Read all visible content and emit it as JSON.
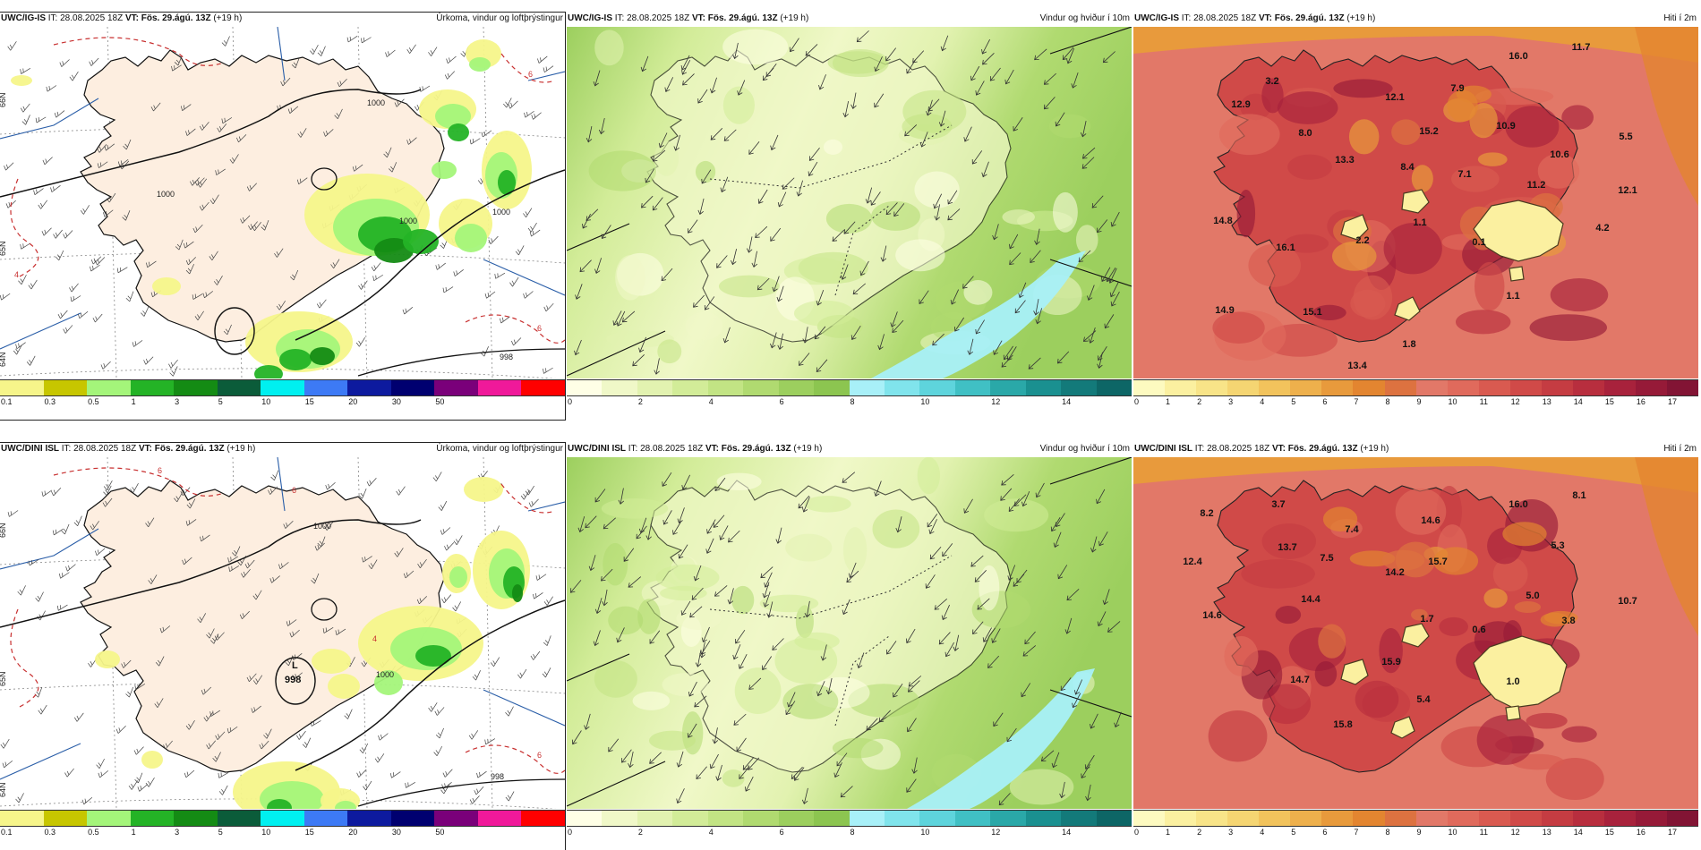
{
  "rows": [
    {
      "id": "top",
      "panels": [
        {
          "type": "precip",
          "model": "UWC/IG-IS",
          "it_label": "IT:",
          "it_value": "28.08.2025 18Z",
          "vt_label": "VT:",
          "vt_value": "Fös. 29.ágú. 13Z",
          "lead": "(+19 h)",
          "field_title": "Úrkoma, vindur og loftþrýstingur",
          "isobar_labels": [
            "1000",
            "1000",
            "1000",
            "998",
            "1000"
          ],
          "low_label": "",
          "low_value": "",
          "temp_labels": [
            "6",
            "4",
            "6"
          ],
          "lat_labels": [
            "66N",
            "65N",
            "64N"
          ],
          "colors": [
            "#f6f58a",
            "#c7c600",
            "#a4f57a",
            "#24b326",
            "#148b14",
            "#0b5c3a",
            "#00f0f0",
            "#3d7af5",
            "#0d1a9e",
            "#000070",
            "#7a007a",
            "#f0199a",
            "#ff0000"
          ],
          "ticks": [
            "0.1",
            "0.3",
            "0.5",
            "1",
            "3",
            "5",
            "10",
            "15",
            "20",
            "30",
            "50"
          ]
        },
        {
          "type": "wind",
          "model": "UWC/IG-IS",
          "it_label": "IT:",
          "it_value": "28.08.2025 18Z",
          "vt_label": "VT:",
          "vt_value": "Fös. 29.ágú. 13Z",
          "lead": "(+19 h)",
          "field_title": "Vindur og hviður í 10m",
          "colors": [
            "#ffffe6",
            "#f0f8c8",
            "#e2f2b0",
            "#d2ec98",
            "#c2e484",
            "#b0da70",
            "#9ccf5e",
            "#8cc550",
            "#a8f0f8",
            "#80e4ec",
            "#5ed4dc",
            "#40c0c4",
            "#2aa8a8",
            "#1a9090",
            "#137a7a",
            "#0d6666"
          ],
          "ticks": [
            "0",
            "2",
            "4",
            "6",
            "8",
            "10",
            "12",
            "14"
          ]
        },
        {
          "type": "temp",
          "model": "UWC/IG-IS",
          "it_label": "IT:",
          "it_value": "28.08.2025 18Z",
          "vt_label": "VT:",
          "vt_value": "Fös. 29.ágú. 13Z",
          "lead": "(+19 h)",
          "field_title": "Hiti í 2m",
          "values": [
            {
              "v": "16.0"
            },
            {
              "v": "11.7"
            },
            {
              "v": "3.2"
            },
            {
              "v": "12.9"
            },
            {
              "v": "7.9"
            },
            {
              "v": "12.1"
            },
            {
              "v": "8.0"
            },
            {
              "v": "10.9"
            },
            {
              "v": "15.2"
            },
            {
              "v": "5.5"
            },
            {
              "v": "13.3"
            },
            {
              "v": "8.4"
            },
            {
              "v": "10.6"
            },
            {
              "v": "7.1"
            },
            {
              "v": "11.2"
            },
            {
              "v": "12.1"
            },
            {
              "v": "14.8"
            },
            {
              "v": "1.1"
            },
            {
              "v": "4.2"
            },
            {
              "v": "2.2"
            },
            {
              "v": "0.1"
            },
            {
              "v": "16.1"
            },
            {
              "v": "14.9"
            },
            {
              "v": "15.1"
            },
            {
              "v": "1.8"
            },
            {
              "v": "13.4"
            },
            {
              "v": "1.1"
            }
          ],
          "colors": [
            "#fdfac0",
            "#fbf0a0",
            "#f8e488",
            "#f5d572",
            "#f2c35c",
            "#eeb04c",
            "#e89a3c",
            "#e38530",
            "#dd7240",
            "#e27868",
            "#e06a5c",
            "#d95a50",
            "#d04a48",
            "#c53c42",
            "#b82e3e",
            "#a8223c",
            "#961a38",
            "#821434"
          ],
          "ticks": [
            "0",
            "1",
            "2",
            "3",
            "4",
            "5",
            "6",
            "7",
            "8",
            "9",
            "10",
            "11",
            "12",
            "13",
            "14",
            "15",
            "16",
            "17"
          ]
        }
      ]
    },
    {
      "id": "bottom",
      "panels": [
        {
          "type": "precip",
          "model": "UWC/DINI ISL",
          "it_label": "IT:",
          "it_value": "28.08.2025 18Z",
          "vt_label": "VT:",
          "vt_value": "Fös. 29.ágú. 13Z",
          "lead": "(+19 h)",
          "field_title": "Úrkoma, vindur og loftþrýstingur",
          "isobar_labels": [
            "1000",
            "998",
            "1000"
          ],
          "low_label": "L",
          "low_value": "998",
          "temp_labels": [
            "6",
            "6",
            "4",
            "6"
          ],
          "lat_labels": [
            "66N",
            "65N",
            "64N"
          ],
          "colors": [
            "#f6f58a",
            "#c7c600",
            "#a4f57a",
            "#24b326",
            "#148b14",
            "#0b5c3a",
            "#00f0f0",
            "#3d7af5",
            "#0d1a9e",
            "#000070",
            "#7a007a",
            "#f0199a",
            "#ff0000"
          ],
          "ticks": [
            "0.1",
            "0.3",
            "0.5",
            "1",
            "3",
            "5",
            "10",
            "15",
            "20",
            "30",
            "50"
          ]
        },
        {
          "type": "wind",
          "model": "UWC/DINI ISL",
          "it_label": "IT:",
          "it_value": "28.08.2025 18Z",
          "vt_label": "VT:",
          "vt_value": "Fös. 29.ágú. 13Z",
          "lead": "(+19 h)",
          "field_title": "Vindur og hviður í 10m",
          "colors": [
            "#ffffe6",
            "#f0f8c8",
            "#e2f2b0",
            "#d2ec98",
            "#c2e484",
            "#b0da70",
            "#9ccf5e",
            "#8cc550",
            "#a8f0f8",
            "#80e4ec",
            "#5ed4dc",
            "#40c0c4",
            "#2aa8a8",
            "#1a9090",
            "#137a7a",
            "#0d6666"
          ],
          "ticks": [
            "0",
            "2",
            "4",
            "6",
            "8",
            "10",
            "12",
            "14"
          ]
        },
        {
          "type": "temp",
          "model": "UWC/DINI ISL",
          "it_label": "IT:",
          "it_value": "28.08.2025 18Z",
          "vt_label": "VT:",
          "vt_value": "Fös. 29.ágú. 13Z",
          "lead": "(+19 h)",
          "field_title": "Hiti í 2m",
          "values": [
            {
              "v": "16.0"
            },
            {
              "v": "8.1"
            },
            {
              "v": "8.2"
            },
            {
              "v": "3.7"
            },
            {
              "v": "7.4"
            },
            {
              "v": "14.6"
            },
            {
              "v": "13.7"
            },
            {
              "v": "5.3"
            },
            {
              "v": "12.4"
            },
            {
              "v": "7.5"
            },
            {
              "v": "15.7"
            },
            {
              "v": "14.2"
            },
            {
              "v": "5.0"
            },
            {
              "v": "10.7"
            },
            {
              "v": "14.4"
            },
            {
              "v": "14.6"
            },
            {
              "v": "1.7"
            },
            {
              "v": "3.8"
            },
            {
              "v": "0.6"
            },
            {
              "v": "15.9"
            },
            {
              "v": "14.7"
            },
            {
              "v": "1.0"
            },
            {
              "v": "5.4"
            },
            {
              "v": "15.8"
            }
          ],
          "colors": [
            "#fdfac0",
            "#fbf0a0",
            "#f8e488",
            "#f5d572",
            "#f2c35c",
            "#eeb04c",
            "#e89a3c",
            "#e38530",
            "#dd7240",
            "#e27868",
            "#e06a5c",
            "#d95a50",
            "#d04a48",
            "#c53c42",
            "#b82e3e",
            "#a8223c",
            "#961a38",
            "#821434"
          ],
          "ticks": [
            "0",
            "1",
            "2",
            "3",
            "4",
            "5",
            "6",
            "7",
            "8",
            "9",
            "10",
            "11",
            "12",
            "13",
            "14",
            "15",
            "16",
            "17"
          ]
        }
      ]
    }
  ]
}
